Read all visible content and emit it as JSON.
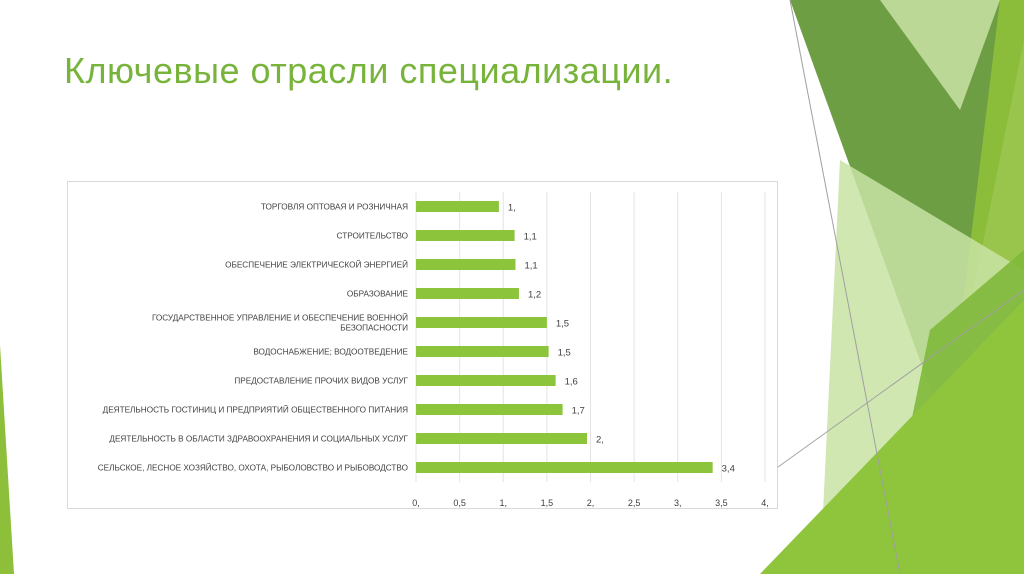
{
  "slide": {
    "title": "Ключевые отрасли специализации."
  },
  "colors": {
    "accent": "#78b43c",
    "bar": "#8cc43c",
    "decor_dark": "#6e9e44",
    "decor_mid": "#8ebf3a",
    "decor_light": "#c9e3a4"
  },
  "chart_data": {
    "type": "bar",
    "orientation": "horizontal",
    "categories": [
      "ТОРГОВЛЯ ОПТОВАЯ И РОЗНИЧНАЯ",
      "СТРОИТЕЛЬСТВО",
      "ОБЕСПЕЧЕНИЕ ЭЛЕКТРИЧЕСКОЙ ЭНЕРГИЕЙ",
      "ОБРАЗОВАНИЕ",
      "ГОСУДАРСТВЕННОЕ УПРАВЛЕНИЕ И ОБЕСПЕЧЕНИЕ ВОЕННОЙ БЕЗОПАСНОСТИ",
      "ВОДОСНАБЖЕНИЕ; ВОДООТВЕДЕНИЕ",
      "ПРЕДОСТАВЛЕНИЕ ПРОЧИХ ВИДОВ УСЛУГ",
      "ДЕЯТЕЛЬНОСТЬ ГОСТИНИЦ И ПРЕДПРИЯТИЙ ОБЩЕСТВЕННОГО ПИТАНИЯ",
      "ДЕЯТЕЛЬНОСТЬ В ОБЛАСТИ ЗДРАВООХРАНЕНИЯ И СОЦИАЛЬНЫХ УСЛУГ",
      "СЕЛЬСКОЕ, ЛЕСНОЕ ХОЗЯЙСТВО, ОХОТА, РЫБОЛОВСТВО И РЫБОВОДСТВО"
    ],
    "category_lines": [
      [
        "ТОРГОВЛЯ ОПТОВАЯ И РОЗНИЧНАЯ"
      ],
      [
        "СТРОИТЕЛЬСТВО"
      ],
      [
        "ОБЕСПЕЧЕНИЕ ЭЛЕКТРИЧЕСКОЙ ЭНЕРГИЕЙ"
      ],
      [
        "ОБРАЗОВАНИЕ"
      ],
      [
        "ГОСУДАРСТВЕННОЕ УПРАВЛЕНИЕ И ОБЕСПЕЧЕНИЕ ВОЕННОЙ",
        "БЕЗОПАСНОСТИ"
      ],
      [
        "ВОДОСНАБЖЕНИЕ; ВОДООТВЕДЕНИЕ"
      ],
      [
        "ПРЕДОСТАВЛЕНИЕ ПРОЧИХ ВИДОВ УСЛУГ"
      ],
      [
        "ДЕЯТЕЛЬНОСТЬ ГОСТИНИЦ И ПРЕДПРИЯТИЙ ОБЩЕСТВЕННОГО ПИТАНИЯ"
      ],
      [
        "ДЕЯТЕЛЬНОСТЬ В ОБЛАСТИ ЗДРАВООХРАНЕНИЯ И СОЦИАЛЬНЫХ УСЛУГ"
      ],
      [
        "СЕЛЬСКОЕ, ЛЕСНОЕ ХОЗЯЙСТВО, ОХОТА, РЫБОЛОВСТВО И РЫБОВОДСТВО"
      ]
    ],
    "values": [
      0.95,
      1.13,
      1.14,
      1.18,
      1.5,
      1.52,
      1.6,
      1.68,
      1.96,
      3.4
    ],
    "value_labels": [
      "1,",
      "1,1",
      "1,1",
      "1,2",
      "1,5",
      "1,5",
      "1,6",
      "1,7",
      "2,",
      "3,4"
    ],
    "xlim": [
      0,
      4
    ],
    "x_ticks": [
      0,
      0.5,
      1,
      1.5,
      2,
      2.5,
      3,
      3.5,
      4
    ],
    "x_tick_labels": [
      "0,",
      "0,5",
      "1,",
      "1,5",
      "2,",
      "2,5",
      "3,",
      "3,5",
      "4,"
    ],
    "title": "",
    "xlabel": "",
    "ylabel": "",
    "grid": true,
    "legend": "none"
  }
}
